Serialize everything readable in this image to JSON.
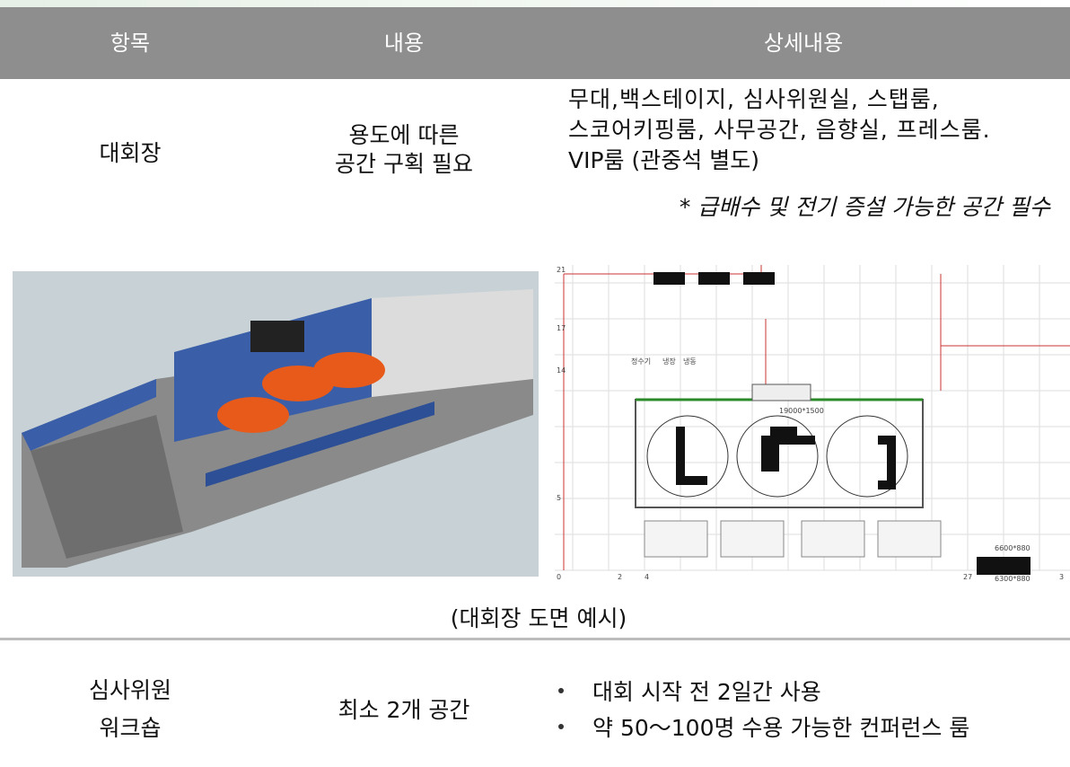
{
  "table": {
    "headers": [
      "항목",
      "내용",
      "상세내용"
    ],
    "rows": [
      {
        "item": "대회장",
        "content": [
          "용도에 따른",
          "공간 구획 필요"
        ],
        "details": [
          "무대,백스테이지, 심사위원실, 스탭룸,",
          "스코어키핑룸, 사무공간, 음향실, 프레스룸.",
          "VIP룸 (관중석 별도)"
        ],
        "note": "* 급배수 및 전기 증설 가능한 공간 필수",
        "figure": {
          "caption": "(대회장 도면 예시)",
          "plan_labels": [
            "21",
            "17",
            "14",
            "5",
            "0",
            "2",
            "4",
            "27",
            "3",
            "정수기",
            "냉장",
            "냉동",
            "19000*1500",
            "6600*880",
            "6300*880"
          ]
        }
      },
      {
        "item": [
          "심사위원",
          "워크숍"
        ],
        "content": "최소 2개 공간",
        "bullets": [
          "대회 시작 전 2일간 사용",
          "약 50～100명 수용 가능한 컨퍼런스 룸"
        ]
      }
    ]
  }
}
